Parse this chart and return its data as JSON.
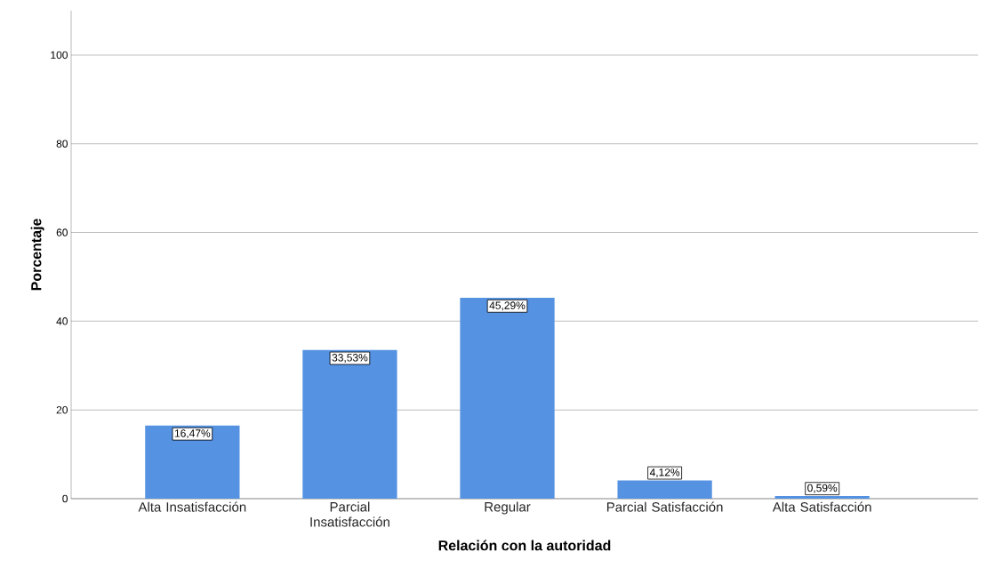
{
  "chart_data": {
    "type": "bar",
    "xlabel": "Relación con la autoridad",
    "ylabel": "Porcentaje",
    "categories": [
      "Alta Insatisfacción",
      "Parcial Insatisfacción",
      "Regular",
      "Parcial Satisfacción",
      "Alta Satisfacción"
    ],
    "values": [
      16.47,
      33.53,
      45.29,
      4.12,
      0.59
    ],
    "value_labels": [
      "16,47%",
      "33,53%",
      "45,29%",
      "4,12%",
      "0,59%"
    ],
    "color": "#5592e2",
    "ylim": [
      0,
      110
    ],
    "yticks": [
      0,
      20,
      40,
      60,
      80,
      100
    ],
    "grid": "y"
  }
}
